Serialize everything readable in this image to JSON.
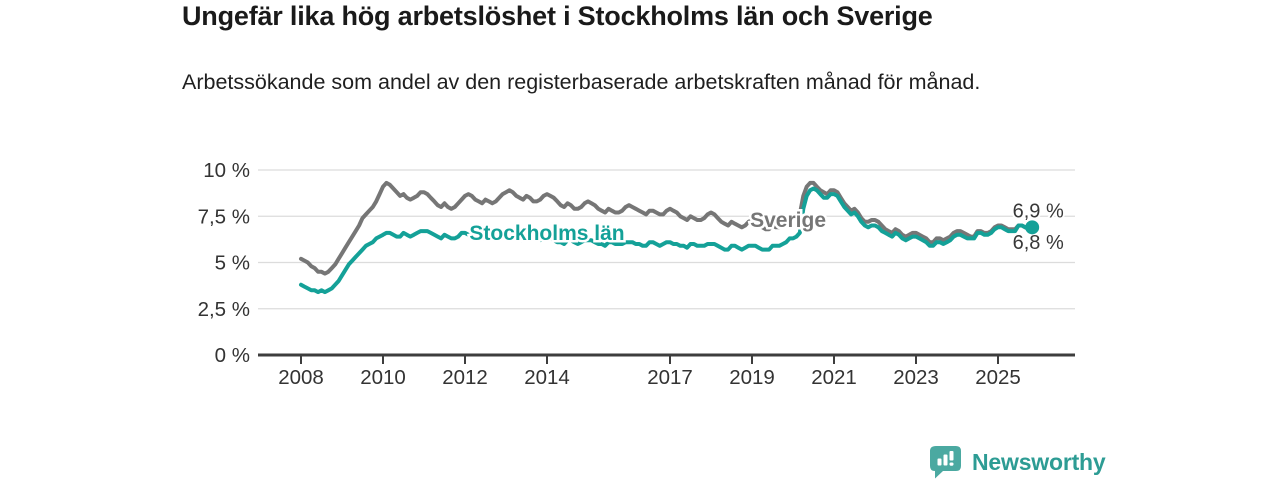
{
  "header": {
    "title": "Ungefär lika hög arbetslöshet i Stockholms län och Sverige",
    "subtitle": "Arbetssökande som andel av den registerbaserade arbetskraften månad för månad."
  },
  "footer": {
    "brand": "Newsworthy",
    "brand_color": "#2d9c94",
    "logo_color": "#4ba9a1"
  },
  "chart_data": {
    "type": "line",
    "title": "Ungefär lika hög arbetslöshet i Stockholms län och Sverige",
    "xlabel": "",
    "ylabel": "",
    "x_start_year": 2008,
    "points_per_year": 12,
    "ylim": [
      0,
      10
    ],
    "grid": "horizontal",
    "y_ticks": [
      {
        "value": 10,
        "label": "10 %"
      },
      {
        "value": 7.5,
        "label": "7,5 %"
      },
      {
        "value": 5,
        "label": "5 %"
      },
      {
        "value": 2.5,
        "label": "2,5 %"
      },
      {
        "value": 0,
        "label": "0 %"
      }
    ],
    "x_ticks": [
      {
        "value": 2008,
        "label": "2008"
      },
      {
        "value": 2010,
        "label": "2010"
      },
      {
        "value": 2012,
        "label": "2012"
      },
      {
        "value": 2014,
        "label": "2014"
      },
      {
        "value": 2017,
        "label": "2017"
      },
      {
        "value": 2019,
        "label": "2019"
      },
      {
        "value": 2021,
        "label": "2021"
      },
      {
        "value": 2023,
        "label": "2023"
      },
      {
        "value": 2025,
        "label": "2025"
      }
    ],
    "colors": {
      "axis": "#3d3d3d",
      "grid": "#dcdcdc",
      "tick_text": "#333333",
      "value_label": "#383838"
    },
    "series": [
      {
        "name": "Sverige",
        "color": "#767676",
        "end_label": "6,8 %",
        "end_label_position": "below",
        "end_dot": false,
        "annotation": {
          "text": "Sverige",
          "x": 2019.88,
          "y": 7.3
        },
        "values": [
          5.2,
          5.1,
          5.0,
          4.8,
          4.7,
          4.5,
          4.5,
          4.4,
          4.5,
          4.7,
          4.9,
          5.2,
          5.5,
          5.8,
          6.1,
          6.4,
          6.7,
          7.0,
          7.4,
          7.6,
          7.8,
          8.0,
          8.3,
          8.7,
          9.1,
          9.3,
          9.2,
          9.0,
          8.8,
          8.6,
          8.7,
          8.5,
          8.4,
          8.5,
          8.6,
          8.8,
          8.8,
          8.7,
          8.5,
          8.3,
          8.1,
          8.0,
          8.2,
          8.0,
          7.9,
          8.0,
          8.2,
          8.4,
          8.6,
          8.7,
          8.6,
          8.4,
          8.3,
          8.2,
          8.4,
          8.3,
          8.2,
          8.3,
          8.5,
          8.7,
          8.8,
          8.9,
          8.8,
          8.6,
          8.5,
          8.4,
          8.6,
          8.5,
          8.3,
          8.3,
          8.4,
          8.6,
          8.7,
          8.6,
          8.5,
          8.3,
          8.1,
          8.0,
          8.2,
          8.1,
          7.9,
          7.9,
          8.0,
          8.2,
          8.3,
          8.2,
          8.1,
          7.9,
          7.8,
          7.7,
          7.9,
          7.8,
          7.7,
          7.7,
          7.8,
          8.0,
          8.1,
          8.0,
          7.9,
          7.8,
          7.7,
          7.6,
          7.8,
          7.8,
          7.7,
          7.6,
          7.6,
          7.8,
          7.9,
          7.8,
          7.7,
          7.5,
          7.4,
          7.3,
          7.5,
          7.4,
          7.3,
          7.3,
          7.4,
          7.6,
          7.7,
          7.6,
          7.4,
          7.2,
          7.1,
          7.0,
          7.2,
          7.1,
          7.0,
          6.9,
          7.0,
          7.2,
          7.3,
          7.2,
          7.1,
          6.9,
          6.8,
          6.8,
          7.0,
          6.9,
          6.9,
          7.0,
          7.1,
          7.3,
          7.4,
          7.4,
          7.6,
          8.6,
          9.1,
          9.3,
          9.3,
          9.1,
          8.9,
          8.8,
          8.7,
          8.9,
          8.9,
          8.8,
          8.5,
          8.2,
          8.0,
          7.8,
          7.9,
          7.7,
          7.4,
          7.2,
          7.2,
          7.3,
          7.3,
          7.2,
          7.0,
          6.8,
          6.7,
          6.6,
          6.8,
          6.7,
          6.5,
          6.4,
          6.5,
          6.6,
          6.6,
          6.5,
          6.4,
          6.3,
          6.1,
          6.1,
          6.3,
          6.3,
          6.2,
          6.3,
          6.4,
          6.6,
          6.7,
          6.7,
          6.6,
          6.5,
          6.4,
          6.4,
          6.7,
          6.7,
          6.6,
          6.6,
          6.7,
          6.9,
          7.0,
          7.0,
          6.9,
          6.8,
          6.8,
          6.8,
          7.0,
          7.0,
          6.9,
          6.9,
          6.8
        ]
      },
      {
        "name": "Stockholms län",
        "color": "#14a198",
        "end_label": "6,9 %",
        "end_label_position": "above",
        "end_dot": true,
        "annotation": {
          "text": "Stockholms län",
          "x": 2014.0,
          "y": 6.6
        },
        "values": [
          3.8,
          3.7,
          3.6,
          3.5,
          3.5,
          3.4,
          3.5,
          3.4,
          3.5,
          3.6,
          3.8,
          4.0,
          4.3,
          4.6,
          4.9,
          5.1,
          5.3,
          5.5,
          5.7,
          5.9,
          6.0,
          6.1,
          6.3,
          6.4,
          6.5,
          6.6,
          6.6,
          6.5,
          6.4,
          6.4,
          6.6,
          6.5,
          6.4,
          6.5,
          6.6,
          6.7,
          6.7,
          6.7,
          6.6,
          6.5,
          6.4,
          6.3,
          6.5,
          6.4,
          6.3,
          6.3,
          6.4,
          6.6,
          6.6,
          6.5,
          6.4,
          6.4,
          6.3,
          6.3,
          6.5,
          6.4,
          6.3,
          6.3,
          6.4,
          6.5,
          6.5,
          6.5,
          6.4,
          6.3,
          6.2,
          6.2,
          6.4,
          6.3,
          6.2,
          6.2,
          6.2,
          6.3,
          6.4,
          6.3,
          6.2,
          6.1,
          6.1,
          6.0,
          6.2,
          6.2,
          6.1,
          6.0,
          6.1,
          6.2,
          6.2,
          6.2,
          6.1,
          6.0,
          6.0,
          5.9,
          6.1,
          6.1,
          6.0,
          6.0,
          6.0,
          6.1,
          6.1,
          6.1,
          6.0,
          6.0,
          5.9,
          5.9,
          6.1,
          6.1,
          6.0,
          5.9,
          6.0,
          6.1,
          6.1,
          6.0,
          6.0,
          5.9,
          5.9,
          5.8,
          6.0,
          6.0,
          5.9,
          5.9,
          5.9,
          6.0,
          6.0,
          6.0,
          5.9,
          5.8,
          5.7,
          5.7,
          5.9,
          5.9,
          5.8,
          5.7,
          5.8,
          5.9,
          5.9,
          5.9,
          5.8,
          5.7,
          5.7,
          5.7,
          5.9,
          5.9,
          5.9,
          6.0,
          6.1,
          6.3,
          6.3,
          6.4,
          6.6,
          7.9,
          8.6,
          8.9,
          9.0,
          8.9,
          8.7,
          8.5,
          8.5,
          8.7,
          8.7,
          8.6,
          8.3,
          8.0,
          7.8,
          7.6,
          7.7,
          7.5,
          7.2,
          7.0,
          6.9,
          7.0,
          7.0,
          6.9,
          6.7,
          6.6,
          6.5,
          6.4,
          6.6,
          6.5,
          6.3,
          6.2,
          6.3,
          6.4,
          6.4,
          6.3,
          6.2,
          6.1,
          5.9,
          5.9,
          6.1,
          6.1,
          6.0,
          6.1,
          6.2,
          6.4,
          6.5,
          6.5,
          6.4,
          6.3,
          6.3,
          6.3,
          6.6,
          6.6,
          6.5,
          6.5,
          6.6,
          6.8,
          6.9,
          6.9,
          6.8,
          6.7,
          6.7,
          6.7,
          7.0,
          7.0,
          6.9,
          6.8,
          6.9
        ]
      }
    ]
  }
}
